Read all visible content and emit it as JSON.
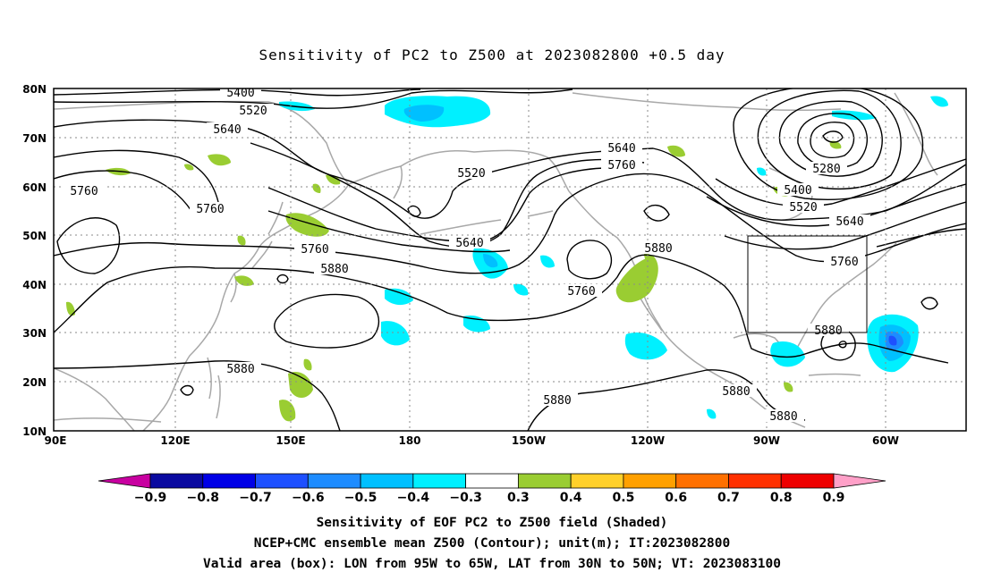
{
  "title": "Sensitivity of PC2 to Z500 at 2023082800 +0.5 day",
  "lon_ticks": [
    "90E",
    "120E",
    "150E",
    "180",
    "150W",
    "120W",
    "90W",
    "60W"
  ],
  "lat_ticks": [
    "80N",
    "70N",
    "60N",
    "50N",
    "40N",
    "30N",
    "20N",
    "10N"
  ],
  "contour_labels": [
    "5400",
    "5520",
    "5640",
    "5760",
    "5760",
    "5520",
    "5640",
    "5760",
    "5760",
    "5640",
    "5880",
    "5880",
    "5640",
    "5760",
    "5880",
    "5760",
    "5880",
    "5880",
    "5280",
    "5400",
    "5520",
    "5640",
    "5760",
    "5880",
    "5880"
  ],
  "colorbar": {
    "labels": [
      "−0.9",
      "−0.8",
      "−0.7",
      "−0.6",
      "−0.5",
      "−0.4",
      "−0.3",
      "0.3",
      "0.4",
      "0.5",
      "0.6",
      "0.7",
      "0.8",
      "0.9"
    ],
    "colors": [
      "#c800a0",
      "#0a0aa0",
      "#0000e6",
      "#1e50ff",
      "#1e8cff",
      "#00c0ff",
      "#00f0ff",
      "#ffffff",
      "#9acd32",
      "#ffd02a",
      "#ffa000",
      "#ff7000",
      "#ff3000",
      "#ee0000",
      "#ffa0c8"
    ]
  },
  "captions": {
    "line1": "Sensitivity of EOF PC2 to Z500 field (Shaded)",
    "line2": "NCEP+CMC ensemble mean Z500 (Contour); unit(m); IT:2023082800",
    "line3": "Valid area (box): LON from 95W to 65W, LAT from 30N to 50N; VT: 2023083100"
  },
  "valid_box": {
    "lon_range": [
      "95W",
      "65W"
    ],
    "lat_range": [
      "30N",
      "50N"
    ]
  },
  "colors": {
    "land": "#a8a8a8",
    "contour": "#000000",
    "grid": "#8a8a8a",
    "positive": "#9acd32",
    "negative_light": "#00f0ff",
    "negative_mid": "#00c0ff",
    "negative_strong": "#1e50ff"
  }
}
